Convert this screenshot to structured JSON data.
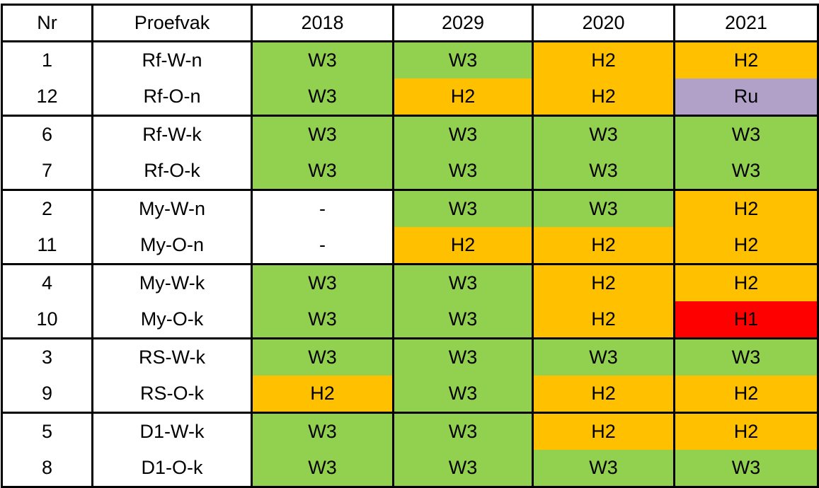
{
  "colors": {
    "W3": "#92d050",
    "H2": "#ffc000",
    "Ru": "#b1a0c7",
    "H1": "#ff0000",
    "-": "#ffffff"
  },
  "headers": [
    "Nr",
    "Proefvak",
    "2018",
    "2029",
    "2020",
    "2021"
  ],
  "rows": [
    {
      "nr": "1",
      "proefvak": "Rf-W-n",
      "values": [
        "W3",
        "W3",
        "H2",
        "H2"
      ]
    },
    {
      "nr": "12",
      "proefvak": "Rf-O-n",
      "values": [
        "W3",
        "H2",
        "H2",
        "Ru"
      ]
    },
    {
      "nr": "6",
      "proefvak": "Rf-W-k",
      "values": [
        "W3",
        "W3",
        "W3",
        "W3"
      ]
    },
    {
      "nr": "7",
      "proefvak": "Rf-O-k",
      "values": [
        "W3",
        "W3",
        "W3",
        "W3"
      ]
    },
    {
      "nr": "2",
      "proefvak": "My-W-n",
      "values": [
        "-",
        "W3",
        "W3",
        "H2"
      ]
    },
    {
      "nr": "11",
      "proefvak": "My-O-n",
      "values": [
        "-",
        "H2",
        "H2",
        "H2"
      ]
    },
    {
      "nr": "4",
      "proefvak": "My-W-k",
      "values": [
        "W3",
        "W3",
        "H2",
        "H2"
      ]
    },
    {
      "nr": "10",
      "proefvak": "My-O-k",
      "values": [
        "W3",
        "W3",
        "H2",
        "H1"
      ]
    },
    {
      "nr": "3",
      "proefvak": "RS-W-k",
      "values": [
        "W3",
        "W3",
        "W3",
        "W3"
      ]
    },
    {
      "nr": "9",
      "proefvak": "RS-O-k",
      "values": [
        "H2",
        "W3",
        "H2",
        "H2"
      ]
    },
    {
      "nr": "5",
      "proefvak": "D1-W-k",
      "values": [
        "W3",
        "W3",
        "H2",
        "H2"
      ]
    },
    {
      "nr": "8",
      "proefvak": "D1-O-k",
      "values": [
        "W3",
        "W3",
        "W3",
        "W3"
      ]
    }
  ]
}
